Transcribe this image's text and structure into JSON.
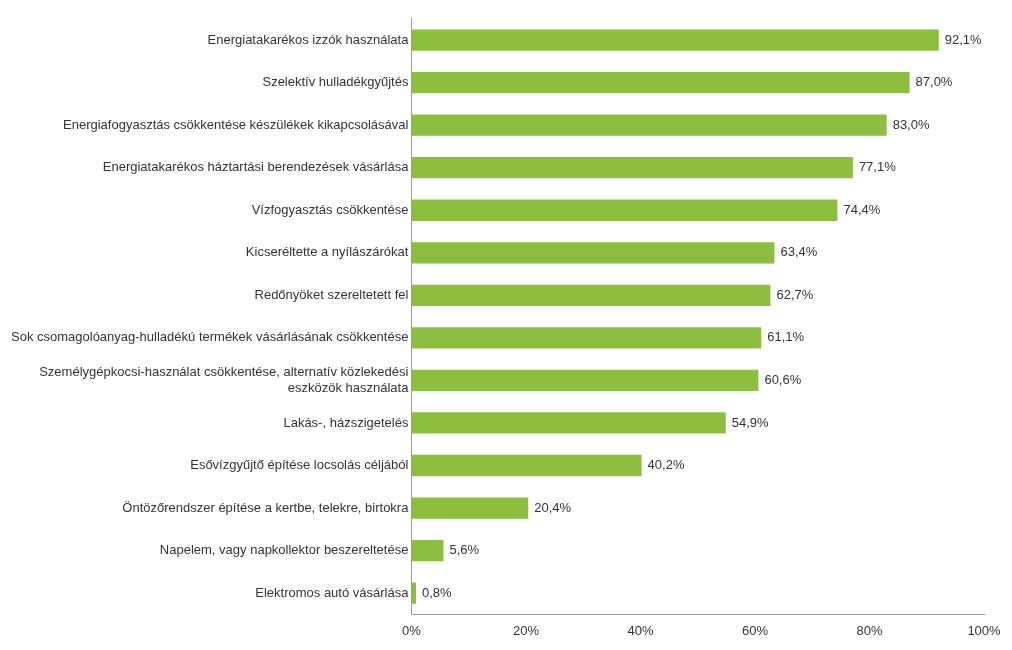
{
  "chart_data": {
    "type": "bar",
    "orientation": "horizontal",
    "categories": [
      "Energiatakarékos izzók használata",
      "Szelektív hulladékgyűjtés",
      "Energiafogyasztás csökkentése készülékek kikapcsolásával",
      "Energiatakarékos háztartási berendezések vásárlása",
      "Vízfogyasztás csökkentése",
      "Kicseréltette a nyílászárókat",
      "Redőnyöket szereltetett fel",
      "Sok csomagolóanyag-hulladékú termékek vásárlásának csökkentése",
      "Személygépkocsi-használat csökkentése, alternatív közlekedési eszközök használata",
      "Lakás-, házszigetelés",
      "Esővízgyűjtő építése locsolás céljából",
      "Öntözőrendszer építése a kertbe, telekre, birtokra",
      "Napelem, vagy napkollektor beszereltetése",
      "Elektromos autó vásárlása"
    ],
    "values": [
      92.1,
      87.0,
      83.0,
      77.1,
      74.4,
      63.4,
      62.7,
      61.1,
      60.6,
      54.9,
      40.2,
      20.4,
      5.6,
      0.8
    ],
    "value_labels": [
      "92,1%",
      "87,0%",
      "83,0%",
      "77,1%",
      "74,4%",
      "63,4%",
      "62,7%",
      "61,1%",
      "60,6%",
      "54,9%",
      "40,2%",
      "20,4%",
      "5,6%",
      "0,8%"
    ],
    "color": "#8cbf3f",
    "xlim": [
      0,
      100
    ],
    "xticks": [
      {
        "value": 0,
        "label": "0%"
      },
      {
        "value": 20,
        "label": "20%"
      },
      {
        "value": 40,
        "label": "40%"
      },
      {
        "value": 60,
        "label": "60%"
      },
      {
        "value": 80,
        "label": "80%"
      },
      {
        "value": 100,
        "label": "100%"
      }
    ],
    "grid": false,
    "legend": false
  }
}
